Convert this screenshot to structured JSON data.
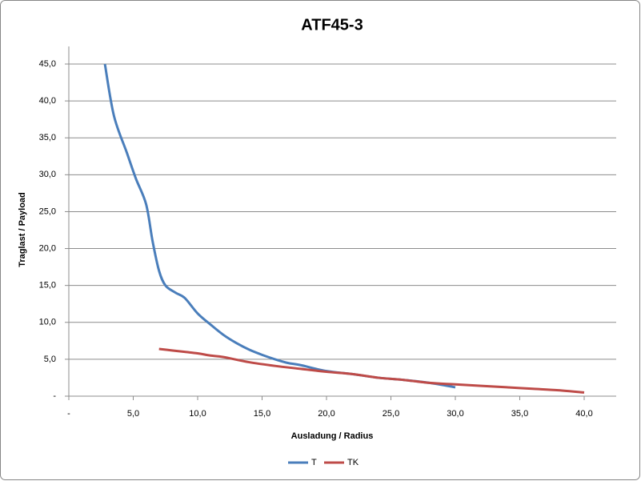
{
  "chart_data": {
    "type": "line",
    "title": "ATF45-3",
    "x_label": "Ausladung / Radius",
    "y_label": "Traglast / Payload",
    "series": [
      {
        "name": "T",
        "color": "#4a7ebb",
        "x": [
          2.8,
          3.5,
          4.5,
          5.2,
          6,
          6.5,
          7,
          7.5,
          8.3,
          9,
          10,
          11,
          12,
          13,
          14,
          15,
          16,
          17,
          18,
          20,
          22,
          24,
          26,
          28,
          30
        ],
        "values": [
          45,
          38,
          33,
          29.5,
          26,
          21,
          17,
          15,
          14,
          13.3,
          11.2,
          9.7,
          8.3,
          7.2,
          6.3,
          5.6,
          5,
          4.5,
          4.2,
          3.4,
          3,
          2.5,
          2.2,
          1.8,
          1.2
        ]
      },
      {
        "name": "TK",
        "color": "#be4b48",
        "x": [
          7,
          8,
          9,
          10,
          11,
          12,
          14,
          16,
          18,
          20,
          22,
          24,
          26,
          28,
          30,
          32,
          34,
          36,
          38,
          40
        ],
        "values": [
          6.4,
          6.2,
          6,
          5.8,
          5.5,
          5.3,
          4.6,
          4.1,
          3.7,
          3.3,
          3,
          2.5,
          2.2,
          1.8,
          1.6,
          1.4,
          1.2,
          1,
          0.8,
          0.5
        ]
      }
    ],
    "xlim": [
      0,
      40
    ],
    "xticks": [
      {
        "value": 0,
        "label": "-"
      },
      {
        "value": 5,
        "label": "5,0"
      },
      {
        "value": 10,
        "label": "10,0"
      },
      {
        "value": 15,
        "label": "15,0"
      },
      {
        "value": 20,
        "label": "20,0"
      },
      {
        "value": 25,
        "label": "25,0"
      },
      {
        "value": 30,
        "label": "30,0"
      },
      {
        "value": 35,
        "label": "35,0"
      },
      {
        "value": 40,
        "label": "40,0"
      }
    ],
    "ylim": [
      0,
      45
    ],
    "yticks": [
      {
        "value": 0,
        "label": "-"
      },
      {
        "value": 5,
        "label": "5,0"
      },
      {
        "value": 10,
        "label": "10,0"
      },
      {
        "value": 15,
        "label": "15,0"
      },
      {
        "value": 20,
        "label": "20,0"
      },
      {
        "value": 25,
        "label": "25,0"
      },
      {
        "value": 30,
        "label": "30,0"
      },
      {
        "value": 35,
        "label": "35,0"
      },
      {
        "value": 40,
        "label": "40,0"
      },
      {
        "value": 45,
        "label": "45,0"
      }
    ],
    "grid": true,
    "legend": "bottom"
  }
}
